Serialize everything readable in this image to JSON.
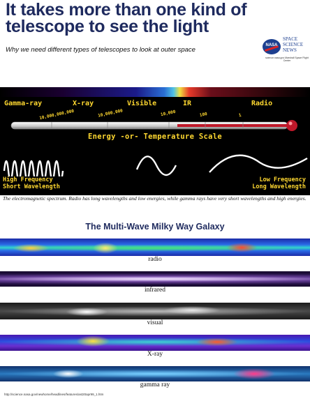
{
  "header": {
    "title_line1": "It takes more than one kind of",
    "title_line2": "telescope to see the light",
    "subtitle": "Why we need different types of telescopes to look at outer space"
  },
  "logo": {
    "nasa": "NASA",
    "brand_line1": "SPACE",
    "brand_line2": "SCIENCE",
    "brand_line3": "NEWS",
    "brand_sub": "science.nasa.gov Marshall Space Flight Center"
  },
  "spectrum": {
    "bands": [
      "Gamma-ray",
      "X-ray",
      "Visible",
      "IR",
      "Radio"
    ],
    "values": [
      "10,000,000,000",
      "10,000,000",
      "10,000",
      "100",
      "1"
    ],
    "scale_label": "Energy -or- Temperature Scale",
    "high_label_1": "High Frequency",
    "high_label_2": "Short Wavelength",
    "low_label_1": "Low Frequency",
    "low_label_2": "Long Wavelength",
    "caption": "The electromagnetic spectrum. Radio has long wavelengths and low energies, while gamma rays have very short wavelengths and high energies."
  },
  "milky_way": {
    "title": "The Multi-Wave Milky Way Galaxy",
    "strips": [
      {
        "label": "radio"
      },
      {
        "label": "infrared"
      },
      {
        "label": "visual"
      },
      {
        "label": "X-ray"
      },
      {
        "label": "gamma ray"
      }
    ]
  },
  "footer": {
    "url": "http://science.nasa.gov/newhome/headlines/features/ast20apr99_1.htm"
  },
  "colors": {
    "title": "#1e2a5e",
    "spectrum_text": "#ffd830",
    "background": "#000000"
  }
}
